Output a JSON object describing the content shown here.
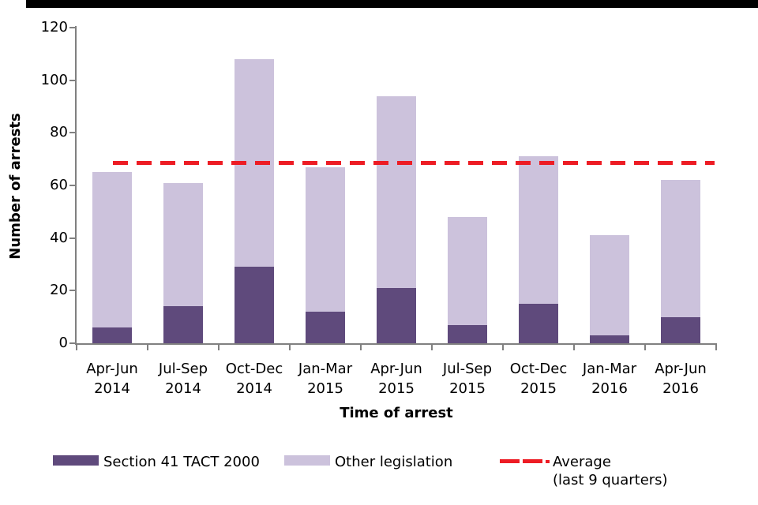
{
  "chart_data": {
    "type": "bar",
    "stacked": true,
    "title": "",
    "xlabel": "Time of arrest",
    "ylabel": "Number of arrests",
    "ylim": [
      0,
      120
    ],
    "yticks": [
      0,
      20,
      40,
      60,
      80,
      100,
      120
    ],
    "grid": false,
    "legend_position": "bottom",
    "categories": [
      {
        "quarter": "Apr-Jun",
        "year": "2014"
      },
      {
        "quarter": "Jul-Sep",
        "year": "2014"
      },
      {
        "quarter": "Oct-Dec",
        "year": "2014"
      },
      {
        "quarter": "Jan-Mar",
        "year": "2015"
      },
      {
        "quarter": "Apr-Jun",
        "year": "2015"
      },
      {
        "quarter": "Jul-Sep",
        "year": "2015"
      },
      {
        "quarter": "Oct-Dec",
        "year": "2015"
      },
      {
        "quarter": "Jan-Mar",
        "year": "2016"
      },
      {
        "quarter": "Apr-Jun",
        "year": "2016"
      }
    ],
    "series": [
      {
        "name": "Section 41 TACT 2000",
        "color": "#5f4a7c",
        "values": [
          6,
          14,
          29,
          12,
          21,
          7,
          15,
          3,
          10
        ]
      },
      {
        "name": "Other legislation",
        "color": "#ccc2dc",
        "values": [
          59,
          47,
          79,
          55,
          73,
          41,
          56,
          38,
          52
        ]
      }
    ],
    "totals": [
      65,
      61,
      108,
      67,
      94,
      48,
      71,
      41,
      62
    ],
    "average_line": {
      "value": 68.6,
      "color": "#ed1c24",
      "label_line1": "Average",
      "label_line2": "(last 9 quarters)"
    }
  },
  "legend": {
    "section41_label": "Section 41 TACT 2000",
    "other_label": "Other legislation",
    "average_label_line1": "Average",
    "average_label_line2": "(last 9 quarters)"
  },
  "colors": {
    "section41": "#5f4a7c",
    "other": "#ccc2dc",
    "average": "#ed1c24",
    "axis": "#808080",
    "topbar": "#000000"
  }
}
